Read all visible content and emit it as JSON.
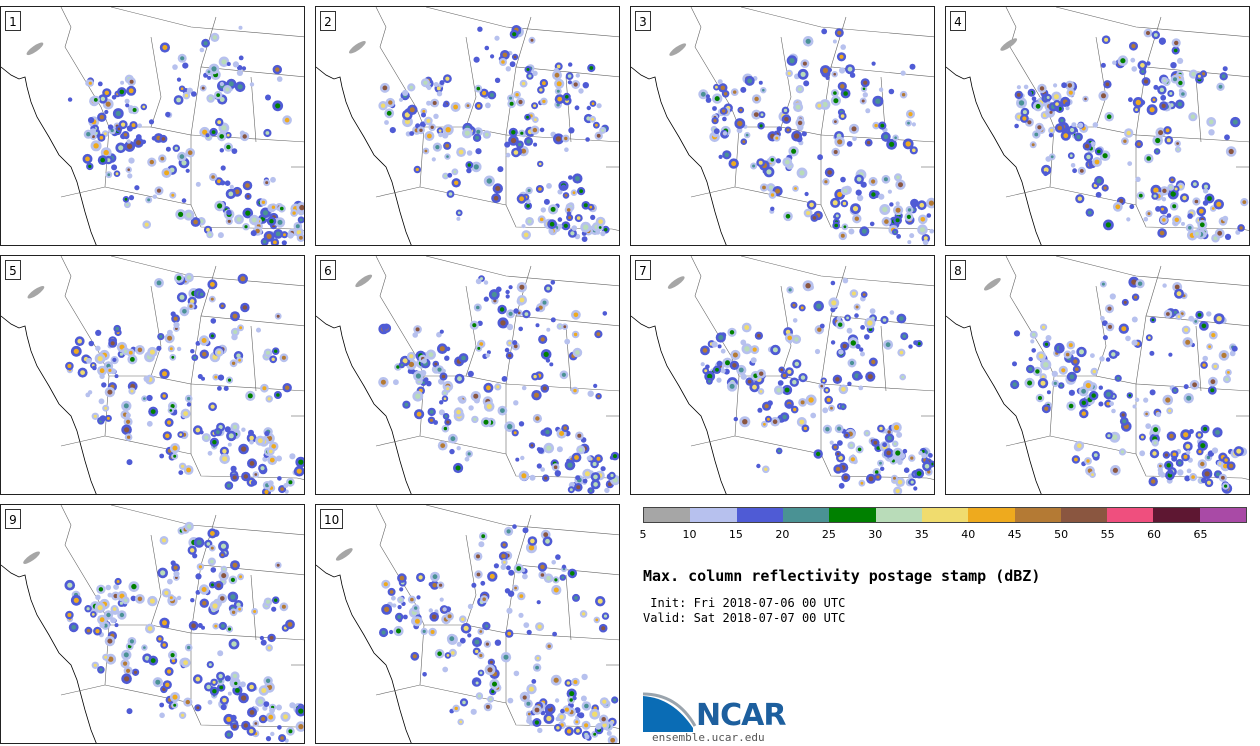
{
  "panels": [
    {
      "label": "1",
      "seed": 11
    },
    {
      "label": "2",
      "seed": 23
    },
    {
      "label": "3",
      "seed": 37
    },
    {
      "label": "4",
      "seed": 41
    },
    {
      "label": "5",
      "seed": 53
    },
    {
      "label": "6",
      "seed": 67
    },
    {
      "label": "7",
      "seed": 71
    },
    {
      "label": "8",
      "seed": 83
    },
    {
      "label": "9",
      "seed": 97
    },
    {
      "label": "10",
      "seed": 101
    }
  ],
  "colorbar": {
    "colors": [
      "#a6a6a6",
      "#b7c1ee",
      "#4f5bd5",
      "#4a9294",
      "#008000",
      "#b9dcb9",
      "#f0dc6e",
      "#eeaa1e",
      "#b47a34",
      "#8a5640",
      "#ef4f7e",
      "#5e1732",
      "#a94aa6"
    ],
    "ticks": [
      "5",
      "10",
      "15",
      "20",
      "25",
      "30",
      "35",
      "40",
      "45",
      "50",
      "55",
      "60",
      "65"
    ]
  },
  "title": "Max. column reflectivity postage stamp (dBZ)",
  "init": " Init: Fri 2018-07-06 00 UTC",
  "valid": "Valid: Sat 2018-07-07 00 UTC",
  "logo": {
    "name": "NCAR",
    "url": "ensemble.ucar.edu",
    "colors": {
      "blue": "#0a6cb5",
      "gray": "#9aa4ad"
    }
  }
}
